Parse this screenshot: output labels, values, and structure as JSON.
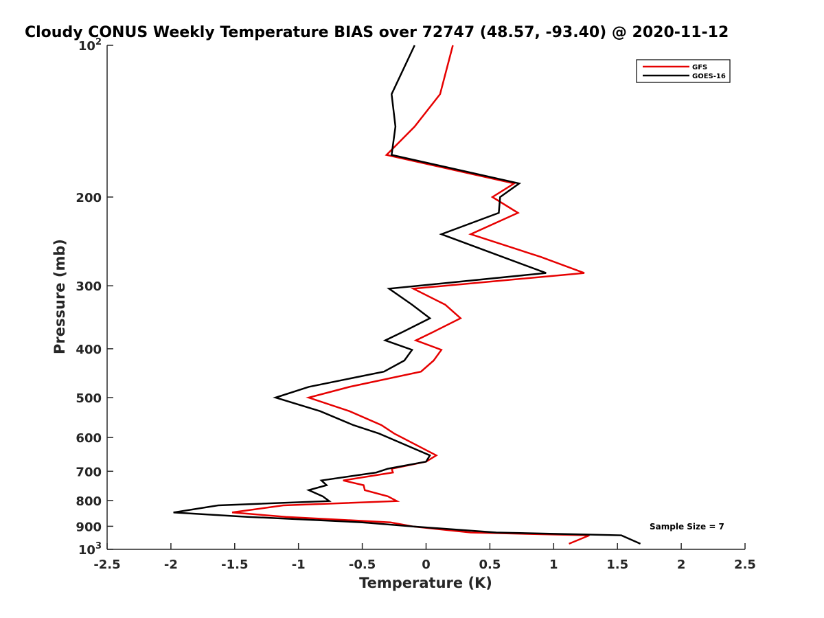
{
  "chart_data": {
    "type": "line",
    "title": "Cloudy CONUS Weekly Temperature BIAS over 72747 (48.57, -93.40) @ 2020-11-12",
    "xlabel": "Temperature (K)",
    "ylabel": "Pressure (mb)",
    "xlim": [
      -2.5,
      2.5
    ],
    "ylim": [
      100,
      1000
    ],
    "y_scale": "log",
    "y_reversed": true,
    "grid": false,
    "legend_position": "top-right",
    "x_ticks": [
      -2.5,
      -2,
      -1.5,
      -1,
      -0.5,
      0,
      0.5,
      1,
      1.5,
      2,
      2.5
    ],
    "x_tick_labels": [
      "-2.5",
      "-2",
      "-1.5",
      "-1",
      "-0.5",
      "0",
      "0.5",
      "1",
      "1.5",
      "2",
      "2.5"
    ],
    "y_ticks": [
      100,
      200,
      300,
      400,
      500,
      600,
      700,
      800,
      900,
      1000
    ],
    "y_tick_labels": [
      {
        "base": "10",
        "exp": "2"
      },
      {
        "base": "200",
        "exp": ""
      },
      {
        "base": "300",
        "exp": ""
      },
      {
        "base": "400",
        "exp": ""
      },
      {
        "base": "500",
        "exp": ""
      },
      {
        "base": "600",
        "exp": ""
      },
      {
        "base": "700",
        "exp": ""
      },
      {
        "base": "800",
        "exp": ""
      },
      {
        "base": "900",
        "exp": ""
      },
      {
        "base": "10",
        "exp": "3"
      }
    ],
    "annotation": "Sample Size = 7",
    "series": [
      {
        "name": "GFS",
        "color": "#e60000",
        "points": [
          [
            0.21,
            100
          ],
          [
            0.11,
            125
          ],
          [
            -0.09,
            145
          ],
          [
            -0.31,
            165
          ],
          [
            0.69,
            188
          ],
          [
            0.52,
            200
          ],
          [
            0.72,
            215
          ],
          [
            0.35,
            237
          ],
          [
            0.9,
            263
          ],
          [
            1.24,
            283
          ],
          [
            -0.1,
            304
          ],
          [
            0.15,
            327
          ],
          [
            0.27,
            348
          ],
          [
            0.06,
            370
          ],
          [
            -0.08,
            385
          ],
          [
            0.12,
            402
          ],
          [
            0.06,
            422
          ],
          [
            -0.04,
            444
          ],
          [
            -0.6,
            476
          ],
          [
            -0.92,
            500
          ],
          [
            -0.6,
            532
          ],
          [
            -0.35,
            567
          ],
          [
            -0.25,
            589
          ],
          [
            0.08,
            651
          ],
          [
            0.0,
            670
          ],
          [
            -0.27,
            692
          ],
          [
            -0.26,
            704
          ],
          [
            -0.65,
            730
          ],
          [
            -0.49,
            746
          ],
          [
            -0.48,
            763
          ],
          [
            -0.3,
            785
          ],
          [
            -0.23,
            802
          ],
          [
            -1.12,
            818
          ],
          [
            -1.52,
            845
          ],
          [
            -1.1,
            862
          ],
          [
            -0.28,
            884
          ],
          [
            -0.1,
            901
          ],
          [
            0.35,
            926
          ],
          [
            1.28,
            938
          ],
          [
            1.12,
            975
          ]
        ]
      },
      {
        "name": "GOES-16",
        "color": "#000000",
        "points": [
          [
            -0.09,
            100
          ],
          [
            -0.27,
            125
          ],
          [
            -0.24,
            145
          ],
          [
            -0.27,
            165
          ],
          [
            0.73,
            188
          ],
          [
            0.58,
            200
          ],
          [
            0.57,
            215
          ],
          [
            0.12,
            237
          ],
          [
            0.6,
            263
          ],
          [
            0.94,
            283
          ],
          [
            -0.29,
            304
          ],
          [
            -0.11,
            327
          ],
          [
            0.03,
            348
          ],
          [
            -0.18,
            370
          ],
          [
            -0.32,
            385
          ],
          [
            -0.11,
            402
          ],
          [
            -0.17,
            422
          ],
          [
            -0.33,
            444
          ],
          [
            -0.92,
            476
          ],
          [
            -1.18,
            500
          ],
          [
            -0.83,
            532
          ],
          [
            -0.57,
            567
          ],
          [
            -0.37,
            589
          ],
          [
            0.03,
            651
          ],
          [
            0.0,
            670
          ],
          [
            -0.3,
            692
          ],
          [
            -0.39,
            704
          ],
          [
            -0.82,
            730
          ],
          [
            -0.78,
            746
          ],
          [
            -0.92,
            763
          ],
          [
            -0.81,
            785
          ],
          [
            -0.76,
            802
          ],
          [
            -1.63,
            818
          ],
          [
            -1.98,
            845
          ],
          [
            -1.4,
            862
          ],
          [
            -0.5,
            884
          ],
          [
            -0.1,
            901
          ],
          [
            0.55,
            926
          ],
          [
            1.53,
            938
          ],
          [
            1.68,
            975
          ]
        ]
      }
    ]
  }
}
